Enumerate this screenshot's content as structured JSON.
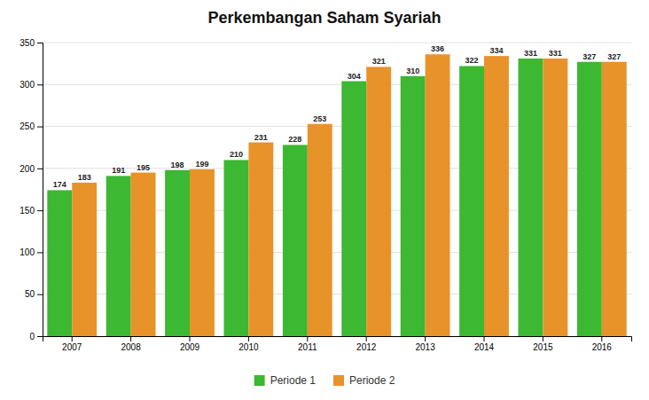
{
  "chart_data": {
    "type": "bar",
    "title": "Perkembangan Saham Syariah",
    "categories": [
      "2007",
      "2008",
      "2009",
      "2010",
      "2011",
      "2012",
      "2013",
      "2014",
      "2015",
      "2016"
    ],
    "series": [
      {
        "name": "Periode 1",
        "color": "#3cb832",
        "values": [
          174,
          191,
          198,
          210,
          228,
          304,
          310,
          322,
          331,
          327
        ]
      },
      {
        "name": "Periode 2",
        "color": "#e8922a",
        "values": [
          183,
          195,
          199,
          231,
          253,
          321,
          336,
          334,
          331,
          327
        ]
      }
    ],
    "ylim": [
      0,
      350
    ],
    "yticks": [
      0,
      50,
      100,
      150,
      200,
      250,
      300,
      350
    ],
    "grid": true,
    "legend": "bottom",
    "data_labels": true
  }
}
